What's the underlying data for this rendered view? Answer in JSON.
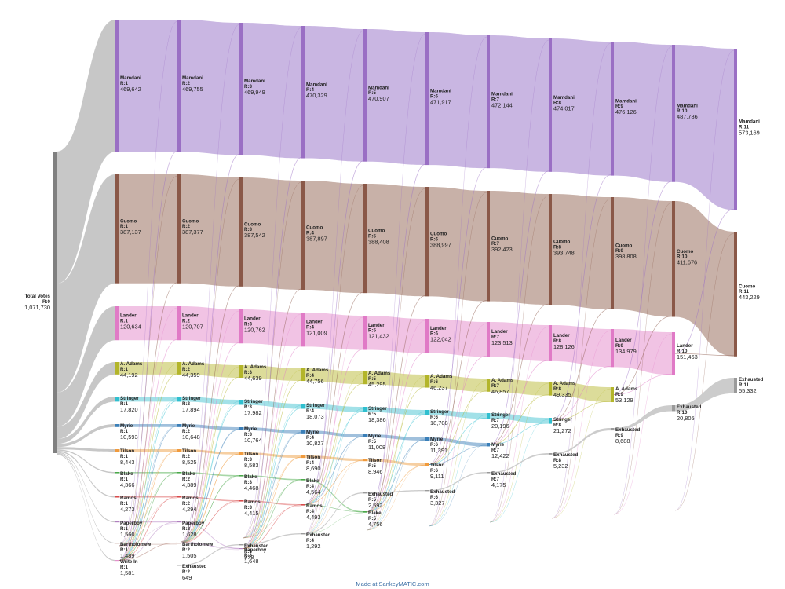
{
  "diagram": {
    "source": {
      "name": "Total Votes",
      "round": "R:0",
      "value": "1,071,730"
    },
    "candidates": [
      {
        "key": "mamdani",
        "name": "Mamdani",
        "color": "#9a6fc4",
        "band": "#c9b6e2",
        "values": [
          "469,642",
          "469,755",
          "469,949",
          "470,329",
          "470,907",
          "471,917",
          "472,144",
          "474,017",
          "476,126",
          "487,786",
          "573,169"
        ]
      },
      {
        "key": "cuomo",
        "name": "Cuomo",
        "color": "#8a5848",
        "band": "#c8b1a8",
        "values": [
          "387,137",
          "387,377",
          "387,542",
          "387,897",
          "388,408",
          "388,997",
          "392,423",
          "393,748",
          "398,808",
          "411,676",
          "443,229"
        ]
      },
      {
        "key": "lander",
        "name": "Lander",
        "color": "#e07ac6",
        "band": "#f1c3e4",
        "values": [
          "120,634",
          "120,707",
          "120,762",
          "121,009",
          "121,432",
          "122,042",
          "123,513",
          "128,126",
          "134,979",
          "151,463"
        ]
      },
      {
        "key": "adams",
        "name": "A. Adams",
        "color": "#b3b52a",
        "band": "#dcdc9a",
        "values": [
          "44,192",
          "44,359",
          "44,639",
          "44,756",
          "45,295",
          "46,237",
          "46,857",
          "49,335",
          "53,129"
        ]
      },
      {
        "key": "stringer",
        "name": "Stringer",
        "color": "#2fbfcf",
        "band": "#a2e1e8",
        "values": [
          "17,820",
          "17,894",
          "17,982",
          "18,073",
          "18,386",
          "18,708",
          "20,196",
          "21,272"
        ]
      },
      {
        "key": "myrie",
        "name": "Myrie",
        "color": "#3a7fb8",
        "band": "#a0c0dc",
        "values": [
          "10,593",
          "10,648",
          "10,764",
          "10,827",
          "11,008",
          "11,391",
          "12,422"
        ]
      },
      {
        "key": "tilson",
        "name": "Tilson",
        "color": "#f09a3c",
        "band": "#f6cfa2",
        "values": [
          "8,443",
          "8,525",
          "8,583",
          "8,690",
          "8,946",
          "9,111"
        ]
      },
      {
        "key": "blake",
        "name": "Blake",
        "color": "#4aa84a",
        "band": "#a8d7a8",
        "values": [
          "4,366",
          "4,389",
          "4,468",
          "4,564",
          "4,756"
        ]
      },
      {
        "key": "ramos",
        "name": "Ramos",
        "color": "#d94b4b",
        "band": "#eeadad",
        "values": [
          "4,273",
          "4,294",
          "4,415",
          "4,493"
        ]
      },
      {
        "key": "paperboy",
        "name": "Paperboy",
        "color": "#b07fbf",
        "band": "#dcc4e3",
        "values": [
          "1,560",
          "1,628",
          "1,648"
        ]
      },
      {
        "key": "bartholomew",
        "name": "Bartholomew",
        "color": "#a26a5c",
        "band": "#d6bbb3",
        "values": [
          "1,489",
          "1,505"
        ]
      },
      {
        "key": "writein",
        "name": "Write In",
        "color": "#e491cd",
        "band": "#f3cde8",
        "values": [
          "1,581"
        ]
      }
    ],
    "exhausted": {
      "name": "Exhausted",
      "color": "#9a9a9a",
      "band": "#cccccc",
      "values": [
        {
          "round": "R:2",
          "value": "649"
        },
        {
          "round": "R:3",
          "value": "978"
        },
        {
          "round": "R:4",
          "value": "1,292"
        },
        {
          "round": "R:5",
          "value": "2,592"
        },
        {
          "round": "R:6",
          "value": "3,327"
        },
        {
          "round": "R:7",
          "value": "4,175"
        },
        {
          "round": "R:8",
          "value": "5,232"
        },
        {
          "round": "R:9",
          "value": "8,688"
        },
        {
          "round": "R:10",
          "value": "20,805"
        },
        {
          "round": "R:11",
          "value": "55,332"
        }
      ]
    },
    "credit": "Made at SankeyMATIC.com"
  }
}
